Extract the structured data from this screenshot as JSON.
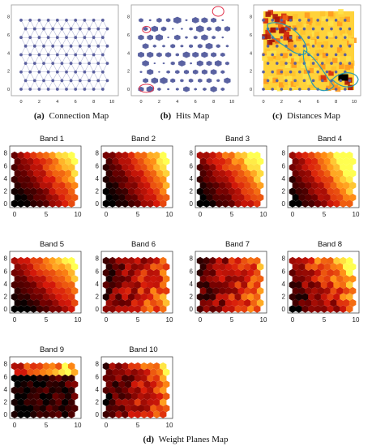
{
  "top_panels": {
    "connection": {
      "caption_letter": "(a)",
      "caption_text": "Connection Map",
      "x_ticks": [
        "0",
        "2",
        "4",
        "6",
        "8",
        "10"
      ],
      "y_ticks": [
        "0",
        "2",
        "4",
        "6",
        "8"
      ]
    },
    "hits": {
      "caption_letter": "(b)",
      "caption_text": "Hits Map",
      "x_ticks": [
        "0",
        "2",
        "4",
        "6",
        "8",
        "10"
      ],
      "y_ticks": [
        "0",
        "2",
        "4",
        "6",
        "8"
      ]
    },
    "distances": {
      "caption_letter": "(c)",
      "caption_text": "Distances Map",
      "x_ticks": [
        "0",
        "2",
        "4",
        "6",
        "8",
        "10"
      ],
      "y_ticks": [
        "0",
        "2",
        "4",
        "6",
        "8"
      ]
    }
  },
  "weight_planes": {
    "caption_letter": "(d)",
    "caption_text": "Weight Planes Map",
    "x_ticks": [
      "0",
      "5",
      "10"
    ],
    "y_ticks": [
      "0",
      "2",
      "4",
      "6",
      "8"
    ],
    "bands": [
      {
        "title": "Band 1"
      },
      {
        "title": "Band 2"
      },
      {
        "title": "Band 3"
      },
      {
        "title": "Band 4"
      },
      {
        "title": "Band 5"
      },
      {
        "title": "Band 6"
      },
      {
        "title": "Band 7"
      },
      {
        "title": "Band 8"
      },
      {
        "title": "Band 9"
      },
      {
        "title": "Band 10"
      }
    ]
  },
  "colors": {
    "node": "#5a5f9e",
    "edge": "#b8bcd8",
    "hex_hits": "#3d4690",
    "highlight": "#e0304a",
    "cluster_line": "#2a9ab0",
    "dark": "#000000",
    "yellow": "#ffff50"
  }
}
